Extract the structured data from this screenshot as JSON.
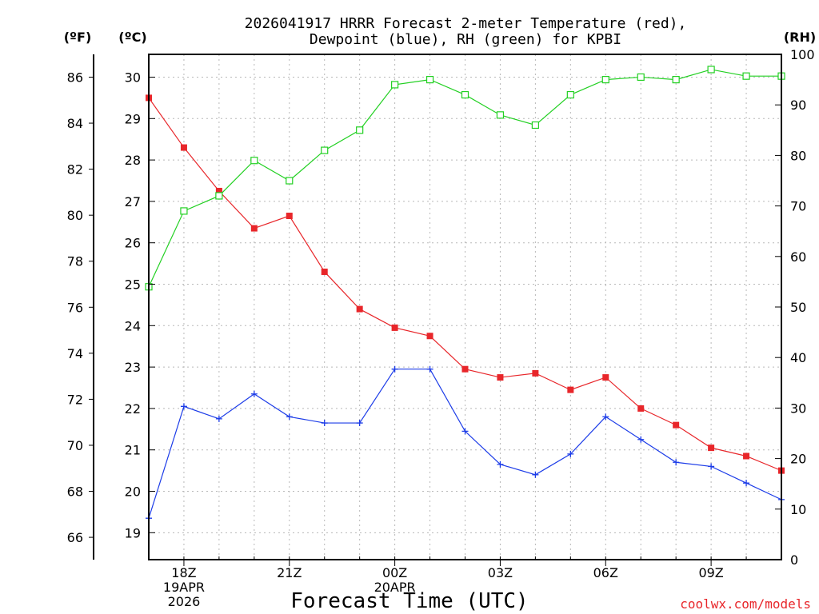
{
  "chart_data": {
    "type": "line",
    "title": [
      "2026041917 HRRR Forecast 2-meter Temperature (red),",
      "Dewpoint (blue), RH (green) for KPBI"
    ],
    "xlabel": "Forecast Time (UTC)",
    "credit": "coolwx.com/models",
    "x_hours": [
      0,
      1,
      2,
      3,
      4,
      5,
      6,
      7,
      8,
      9,
      10,
      11,
      12,
      13,
      14,
      15,
      16,
      17,
      18
    ],
    "xlim": [
      0,
      18
    ],
    "x_ticks": [
      {
        "h": 1,
        "lines": [
          "18Z",
          "19APR",
          "2026"
        ]
      },
      {
        "h": 4,
        "lines": [
          "21Z"
        ]
      },
      {
        "h": 7,
        "lines": [
          "00Z",
          "20APR"
        ]
      },
      {
        "h": 10,
        "lines": [
          "03Z"
        ]
      },
      {
        "h": 13,
        "lines": [
          "06Z"
        ]
      },
      {
        "h": 16,
        "lines": [
          "09Z"
        ]
      }
    ],
    "axes": {
      "fahrenheit": {
        "unit_label": "(ºF)",
        "ticks": [
          66,
          68,
          70,
          72,
          74,
          76,
          78,
          80,
          82,
          84,
          86
        ]
      },
      "celsius": {
        "unit_label": "(ºC)",
        "ylim": [
          18.35,
          30.55
        ],
        "ticks": [
          19,
          20,
          21,
          22,
          23,
          24,
          25,
          26,
          27,
          28,
          29,
          30
        ]
      },
      "rh": {
        "unit_label": "(RH)",
        "ylim": [
          0,
          100
        ],
        "ticks": [
          0,
          10,
          20,
          30,
          40,
          50,
          60,
          70,
          80,
          90,
          100
        ]
      }
    },
    "series": [
      {
        "name": "Temperature",
        "axis": "celsius",
        "color": "#e8262a",
        "marker": "filled-square",
        "values": [
          29.5,
          28.3,
          27.25,
          26.35,
          26.65,
          25.3,
          24.4,
          23.95,
          23.75,
          22.95,
          22.75,
          22.85,
          22.45,
          22.75,
          22.0,
          21.6,
          21.05,
          20.85,
          20.5
        ]
      },
      {
        "name": "Dewpoint",
        "axis": "celsius",
        "color": "#1c3ce8",
        "marker": "plus",
        "values": [
          19.35,
          22.05,
          21.75,
          22.35,
          21.8,
          21.65,
          21.65,
          22.95,
          22.95,
          21.45,
          20.65,
          20.4,
          20.9,
          21.8,
          21.25,
          20.7,
          20.6,
          20.2,
          19.8
        ]
      },
      {
        "name": "RH",
        "axis": "rh",
        "color": "#22d022",
        "marker": "open-square",
        "values": [
          54,
          69,
          72,
          79,
          75,
          81,
          85,
          94,
          95,
          92,
          88,
          86,
          92,
          95,
          95.5,
          95,
          97,
          95.7,
          95.7
        ]
      }
    ]
  }
}
